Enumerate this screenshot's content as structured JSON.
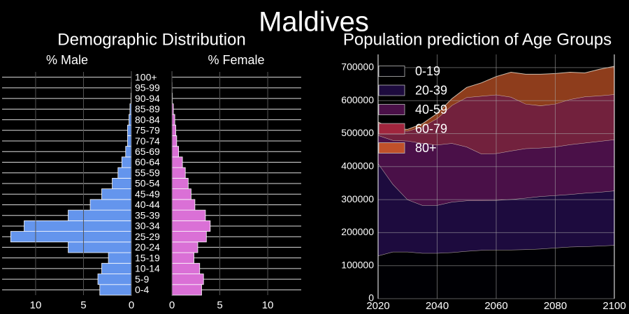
{
  "main_title": "Maldives",
  "chart_data": [
    {
      "type": "bar",
      "orientation": "horizontal",
      "title": "Demographic Distribution",
      "left_label": "% Male",
      "right_label": "% Female",
      "categories": [
        "0-4",
        "5-9",
        "10-14",
        "15-19",
        "20-24",
        "25-29",
        "30-34",
        "35-39",
        "40-44",
        "45-49",
        "50-54",
        "55-59",
        "60-64",
        "65-69",
        "70-74",
        "75-79",
        "80-84",
        "85-89",
        "90-94",
        "95-99",
        "100+"
      ],
      "series": [
        {
          "name": "% Male",
          "values": [
            3.3,
            3.5,
            3.1,
            2.4,
            6.6,
            12.6,
            11.2,
            6.6,
            4.3,
            3.1,
            2.0,
            1.4,
            1.0,
            0.6,
            0.4,
            0.4,
            0.25,
            0.15,
            0.05,
            0.02,
            0.01
          ]
        },
        {
          "name": "% Female",
          "values": [
            3.1,
            3.3,
            2.9,
            2.3,
            2.7,
            3.6,
            4.0,
            3.5,
            2.4,
            2.0,
            1.7,
            1.4,
            1.1,
            0.7,
            0.5,
            0.4,
            0.3,
            0.15,
            0.05,
            0.02,
            0.01
          ]
        }
      ],
      "xlim": [
        0,
        13.5
      ],
      "xticks": [
        0,
        5,
        10
      ],
      "colors": {
        "male": "#6495ed",
        "female": "#da70d6"
      }
    },
    {
      "type": "area",
      "stacked": true,
      "title": "Population prediction of Age Groups",
      "x": [
        2020,
        2025,
        2030,
        2035,
        2040,
        2045,
        2050,
        2055,
        2060,
        2065,
        2070,
        2075,
        2080,
        2085,
        2090,
        2095,
        2100
      ],
      "series": [
        {
          "name": "0-19",
          "values": [
            130000,
            142000,
            142000,
            138000,
            138000,
            140000,
            144000,
            147000,
            148000,
            148000,
            149000,
            151000,
            154000,
            157000,
            158000,
            160000,
            162000
          ],
          "color": "#000004"
        },
        {
          "name": "20-39",
          "values": [
            280000,
            205000,
            158000,
            145000,
            145000,
            153000,
            153000,
            150000,
            150000,
            153000,
            156000,
            159000,
            159000,
            159000,
            162000,
            163000,
            165000
          ],
          "color": "#1d0b3e"
        },
        {
          "name": "40-59",
          "values": [
            85000,
            133000,
            178000,
            188000,
            183000,
            178000,
            163000,
            142000,
            142000,
            147000,
            150000,
            147000,
            147000,
            151000,
            152000,
            154000,
            155000
          ],
          "color": "#4a1048"
        },
        {
          "name": "60-79",
          "values": [
            35000,
            30000,
            30000,
            50000,
            80000,
            115000,
            150000,
            175000,
            178000,
            163000,
            135000,
            128000,
            130000,
            137000,
            140000,
            138000,
            137000
          ],
          "color": "#72213d"
        },
        {
          "name": "80+",
          "values": [
            5000,
            5000,
            5000,
            9000,
            15000,
            20000,
            30000,
            40000,
            55000,
            75000,
            90000,
            95000,
            92000,
            82000,
            72000,
            80000,
            85000
          ],
          "color": "#8e3d1c"
        }
      ],
      "legend_colors": [
        "#000004",
        "#1d0b3e",
        "#4a1048",
        "#a0253d",
        "#c0502a"
      ],
      "xlim": [
        2020,
        2100
      ],
      "ylim": [
        0,
        740000
      ],
      "xticks": [
        2020,
        2040,
        2060,
        2080,
        2100
      ],
      "yticks": [
        0,
        100000,
        200000,
        300000,
        400000,
        500000,
        600000,
        700000
      ],
      "legend_position": "upper-left",
      "grid": true
    }
  ]
}
